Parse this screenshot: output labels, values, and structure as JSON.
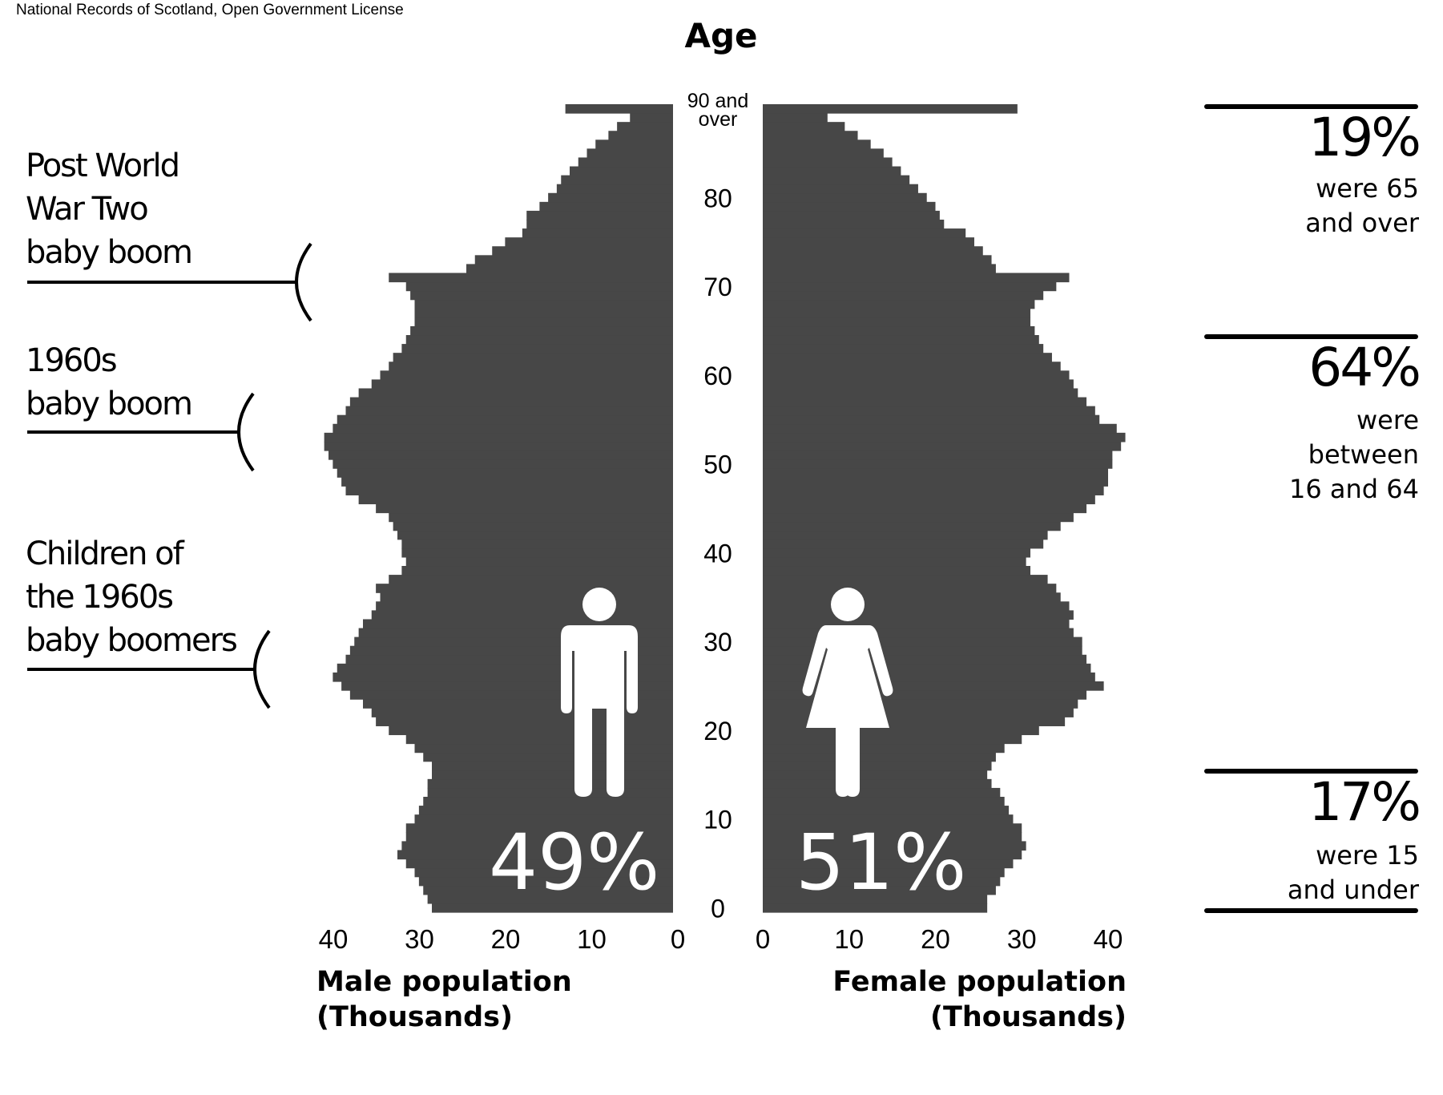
{
  "credit": "National Records of Scotland, Open Government License",
  "chart_data": {
    "type": "bar",
    "orientation": "horizontal-population-pyramid",
    "title": "Age",
    "bar_color": "#474747",
    "age_labels": [
      "0",
      "10",
      "20",
      "30",
      "40",
      "50",
      "60",
      "70",
      "80",
      "90 and over"
    ],
    "age_label_top": "90 and",
    "age_label_bottom": "over",
    "x_ticks_male": [
      "40",
      "30",
      "20",
      "10",
      "0"
    ],
    "x_ticks_female": [
      "0",
      "10",
      "20",
      "30",
      "40"
    ],
    "xlim": [
      0,
      40
    ],
    "male_label": "Male population\n(Thousands)",
    "female_label": "Female population\n(Thousands)",
    "ages": [
      0,
      1,
      2,
      3,
      4,
      5,
      6,
      7,
      8,
      9,
      10,
      11,
      12,
      13,
      14,
      15,
      16,
      17,
      18,
      19,
      20,
      21,
      22,
      23,
      24,
      25,
      26,
      27,
      28,
      29,
      30,
      31,
      32,
      33,
      34,
      35,
      36,
      37,
      38,
      39,
      40,
      41,
      42,
      43,
      44,
      45,
      46,
      47,
      48,
      49,
      50,
      51,
      52,
      53,
      54,
      55,
      56,
      57,
      58,
      59,
      60,
      61,
      62,
      63,
      64,
      65,
      66,
      67,
      68,
      69,
      70,
      71,
      72,
      73,
      74,
      75,
      76,
      77,
      78,
      79,
      80,
      81,
      82,
      83,
      84,
      85,
      86,
      87,
      88,
      89,
      "90+"
    ],
    "male_values": [
      28.0,
      28.5,
      29.0,
      29.5,
      30.0,
      31.0,
      32.0,
      31.5,
      31.0,
      31.0,
      30.0,
      29.5,
      29.0,
      28.5,
      28.5,
      28.0,
      28.0,
      29.0,
      30.0,
      31.0,
      33.0,
      34.5,
      35.0,
      36.0,
      37.5,
      38.5,
      39.5,
      39.0,
      38.0,
      37.5,
      37.0,
      36.5,
      36.0,
      35.0,
      34.5,
      34.0,
      34.5,
      33.0,
      31.5,
      31.0,
      31.5,
      31.5,
      32.0,
      32.5,
      33.0,
      34.5,
      36.5,
      38.0,
      38.5,
      39.0,
      39.5,
      40.0,
      40.5,
      40.5,
      39.5,
      39.0,
      38.0,
      37.5,
      36.5,
      35.0,
      34.0,
      33.0,
      32.5,
      31.5,
      31.0,
      30.5,
      30.0,
      30.0,
      30.0,
      30.5,
      31.0,
      33.0,
      24.0,
      23.0,
      21.0,
      19.5,
      17.5,
      17.0,
      17.0,
      15.5,
      14.5,
      13.5,
      13.0,
      12.0,
      11.0,
      10.0,
      9.0,
      7.5,
      6.5,
      5.0,
      12.5
    ],
    "female_values": [
      26.0,
      26.0,
      27.0,
      27.5,
      28.0,
      29.0,
      30.0,
      30.5,
      30.0,
      30.0,
      29.0,
      28.5,
      28.0,
      27.5,
      26.5,
      26.0,
      26.5,
      27.0,
      28.0,
      30.0,
      32.0,
      35.0,
      36.0,
      36.5,
      37.5,
      39.5,
      38.5,
      38.0,
      37.5,
      37.0,
      37.0,
      36.0,
      35.5,
      36.0,
      35.5,
      34.5,
      34.0,
      33.0,
      31.0,
      30.5,
      31.0,
      32.5,
      33.0,
      34.5,
      36.0,
      37.5,
      38.5,
      39.5,
      40.0,
      40.0,
      40.5,
      40.5,
      41.5,
      42.0,
      41.0,
      39.0,
      38.5,
      37.5,
      36.5,
      36.0,
      35.5,
      34.5,
      33.5,
      32.5,
      32.0,
      31.5,
      31.0,
      31.0,
      31.5,
      32.5,
      34.0,
      35.5,
      27.0,
      26.5,
      25.5,
      24.5,
      23.5,
      21.0,
      20.5,
      20.0,
      19.0,
      18.0,
      17.0,
      16.0,
      15.0,
      14.0,
      12.5,
      11.0,
      9.5,
      7.5,
      29.5
    ]
  },
  "annotations": [
    {
      "text": "Post World\nWar Two\nbaby boom"
    },
    {
      "text": "1960s\nbaby boom"
    },
    {
      "text": "Children of\nthe 1960s\nbaby boomers"
    }
  ],
  "shares": {
    "male_pct": "49%",
    "female_pct": "51%"
  },
  "stats": [
    {
      "big": "19%",
      "small": "were 65\nand over"
    },
    {
      "big": "64%",
      "small": "were\nbetween\n16 and 64"
    },
    {
      "big": "17%",
      "small": "were 15\nand under"
    }
  ]
}
